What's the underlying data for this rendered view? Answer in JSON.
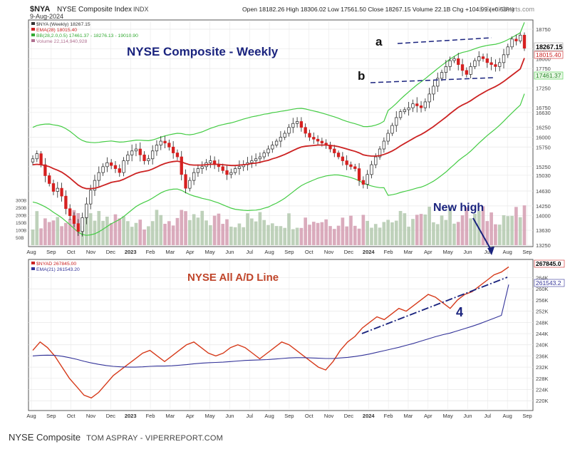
{
  "header": {
    "symbol": "$NYA",
    "name": "NYSE Composite Index",
    "exchange": "INDX",
    "date": "9-Aug-2024",
    "ohlc": "Open 18182.26  High 18306.02  Low 17561.50  Close 18267.15  Volume 22.1B  Chg +104.99 (+0.58%)",
    "watermark": "© StockCharts.com"
  },
  "legend_top": [
    {
      "text": "$NYA (Weekly) 18267.15",
      "color": "#333333"
    },
    {
      "text": "EMA(28) 18015.40",
      "color": "#cc2222"
    },
    {
      "text": "BB(28,2.0,0.5) 17461.37 - 18276.13 - 19010.90",
      "color": "#33aa33"
    },
    {
      "text": "Volume 22,114,940,928",
      "color": "#b07090"
    }
  ],
  "legend_bottom": [
    {
      "text": "$NYAD 267845.00",
      "color": "#cc2222"
    },
    {
      "text": "EMA(21) 261543.20",
      "color": "#333399"
    }
  ],
  "annotations": {
    "title_top": "NYSE Composite - Weekly",
    "label_a": "a",
    "label_b": "b",
    "new_high": "New high",
    "title_bottom": "NYSE All A/D Line",
    "label_4": "4"
  },
  "price_value_labels": {
    "close": "18267.15",
    "ema": "18015.40",
    "bb_low": "17461.37",
    "vol": "22114940928"
  },
  "ad_value_labels": {
    "ad": "267845.0",
    "ema": "261543.2"
  },
  "caption": {
    "title": "NYSE Composite",
    "credit": "TOM ASPRAY - VIPERREPORT.COM"
  },
  "colors": {
    "up": "#ffffff",
    "down": "#d62020",
    "wick": "#222222",
    "ema": "#cc2222",
    "bb": "#44cc44",
    "vol_up": "#b3c9ae",
    "vol_down": "#d49cb0",
    "ad": "#d63a1a",
    "ad_ema": "#333399",
    "title_blue": "#1a237e",
    "title_red": "#c0452a",
    "grid": "#e8e8e8"
  },
  "chart_data": [
    {
      "type": "candlestick",
      "title": "NYSE Composite - Weekly",
      "ylim": [
        13250,
        18950
      ],
      "y_ticks": [
        13250,
        13630,
        14000,
        14250,
        14630,
        15030,
        15250,
        15750,
        16000,
        16250,
        16630,
        16750,
        17250,
        17750,
        18000,
        18250,
        18750
      ],
      "volume_ticks": [
        "50B",
        "100B",
        "150B",
        "200B",
        "250B",
        "300B"
      ],
      "x_ticks": [
        "Aug",
        "Sep",
        "Oct",
        "Nov",
        "Dec",
        "2023",
        "Feb",
        "Mar",
        "Apr",
        "May",
        "Jun",
        "Jul",
        "Aug",
        "Sep",
        "Oct",
        "Nov",
        "Dec",
        "2024",
        "Feb",
        "Mar",
        "Apr",
        "May",
        "Jun",
        "Jul",
        "Aug",
        "Sep"
      ],
      "close": [
        15450,
        15580,
        15300,
        15020,
        14820,
        14620,
        14700,
        14500,
        14180,
        14000,
        13800,
        13600,
        13950,
        14300,
        14650,
        14900,
        15100,
        15250,
        15350,
        15280,
        15200,
        15100,
        15400,
        15550,
        15650,
        15700,
        15550,
        15400,
        15450,
        15650,
        15800,
        15900,
        15850,
        15750,
        15600,
        15500,
        15050,
        14700,
        14900,
        15100,
        15200,
        15250,
        15350,
        15400,
        15300,
        15250,
        15150,
        15050,
        15100,
        15200,
        15250,
        15300,
        15350,
        15400,
        15450,
        15500,
        15600,
        15700,
        15800,
        15900,
        16000,
        16100,
        16250,
        16350,
        16400,
        16250,
        16100,
        16000,
        15950,
        15900,
        15850,
        15800,
        15700,
        15600,
        15500,
        15400,
        15300,
        15250,
        15200,
        14900,
        14800,
        15050,
        15300,
        15500,
        15700,
        15900,
        16100,
        16300,
        16500,
        16650,
        16700,
        16750,
        16850,
        16800,
        16750,
        16900,
        17100,
        17300,
        17500,
        17650,
        17800,
        17950,
        18000,
        17850,
        17700,
        17600,
        17800,
        17950,
        18050,
        18000,
        17900,
        17850,
        17800,
        17900,
        18100,
        18300,
        18500,
        18450,
        18600,
        18267
      ],
      "ema28": [
        15300,
        15310,
        15300,
        15280,
        15250,
        15200,
        15160,
        15110,
        15040,
        14960,
        14870,
        14780,
        14720,
        14690,
        14690,
        14700,
        14730,
        14770,
        14810,
        14850,
        14870,
        14890,
        14930,
        14980,
        15030,
        15080,
        15110,
        15130,
        15150,
        15190,
        15240,
        15290,
        15330,
        15360,
        15380,
        15390,
        15370,
        15330,
        15300,
        15290,
        15290,
        15290,
        15300,
        15310,
        15310,
        15310,
        15300,
        15290,
        15280,
        15280,
        15290,
        15300,
        15310,
        15330,
        15340,
        15360,
        15390,
        15410,
        15450,
        15480,
        15520,
        15560,
        15610,
        15660,
        15710,
        15750,
        15770,
        15780,
        15790,
        15800,
        15800,
        15800,
        15790,
        15780,
        15760,
        15730,
        15700,
        15670,
        15640,
        15600,
        15550,
        15530,
        15520,
        15520,
        15530,
        15560,
        15600,
        15650,
        15710,
        15780,
        15840,
        15900,
        15960,
        16020,
        16070,
        16130,
        16200,
        16270,
        16350,
        16430,
        16510,
        16600,
        16680,
        16760,
        16820,
        16870,
        16930,
        17000,
        17070,
        17130,
        17190,
        17240,
        17290,
        17350,
        17420,
        17500,
        17580,
        17660,
        17740,
        18015
      ]
    },
    {
      "type": "line",
      "title": "NYSE All A/D Line",
      "ylim": [
        217000,
        270000
      ],
      "y_ticks": [
        "220K",
        "224K",
        "228K",
        "232K",
        "236K",
        "240K",
        "244K",
        "248K",
        "252K",
        "256K",
        "260K",
        "264K"
      ],
      "x_ticks": [
        "Aug",
        "Sep",
        "Oct",
        "Nov",
        "Dec",
        "2023",
        "Feb",
        "Mar",
        "Apr",
        "May",
        "Jun",
        "Jul",
        "Aug",
        "Sep",
        "Oct",
        "Nov",
        "Dec",
        "2024",
        "Feb",
        "Mar",
        "Apr",
        "May",
        "Jun",
        "Jul",
        "Aug",
        "Sep"
      ],
      "series": [
        {
          "name": "$NYAD",
          "values": [
            238000,
            241000,
            239000,
            236000,
            232000,
            228000,
            225000,
            222000,
            221000,
            223000,
            226000,
            229000,
            231000,
            233000,
            235000,
            237000,
            238000,
            236000,
            234000,
            236000,
            238000,
            240000,
            241000,
            239000,
            237000,
            236000,
            237000,
            239000,
            240000,
            239000,
            237000,
            235000,
            237000,
            239000,
            241000,
            240000,
            238000,
            236000,
            234000,
            232000,
            231000,
            234000,
            238000,
            241000,
            243000,
            246000,
            248000,
            250000,
            249000,
            251000,
            253000,
            252000,
            254000,
            256000,
            258000,
            257000,
            255000,
            253000,
            256000,
            258000,
            259000,
            261000,
            263000,
            265000,
            266000,
            267845
          ]
        },
        {
          "name": "EMA(21)",
          "values": [
            236000,
            236200,
            236300,
            236200,
            235900,
            235400,
            234800,
            234100,
            233500,
            233000,
            232600,
            232300,
            232100,
            232000,
            232000,
            232100,
            232300,
            232400,
            232400,
            232500,
            232700,
            232900,
            233200,
            233400,
            233600,
            233700,
            233800,
            234000,
            234200,
            234400,
            234500,
            234600,
            234700,
            234900,
            235100,
            235300,
            235400,
            235400,
            235300,
            235200,
            235100,
            235100,
            235300,
            235500,
            235800,
            236200,
            236700,
            237300,
            237900,
            238500,
            239100,
            239800,
            240500,
            241300,
            242100,
            242900,
            243600,
            244200,
            245000,
            245800,
            246600,
            247500,
            248500,
            249500,
            250500,
            261543
          ]
        }
      ]
    }
  ]
}
